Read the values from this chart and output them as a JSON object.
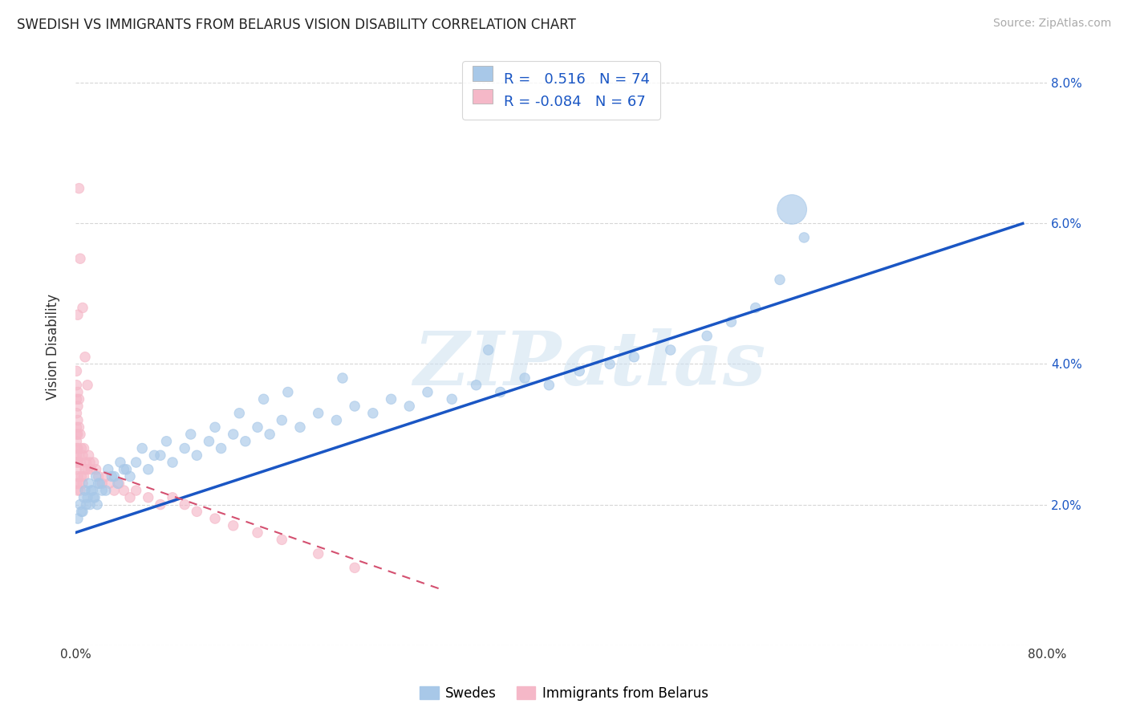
{
  "title": "SWEDISH VS IMMIGRANTS FROM BELARUS VISION DISABILITY CORRELATION CHART",
  "source": "Source: ZipAtlas.com",
  "ylabel": "Vision Disability",
  "xlim": [
    0,
    0.8
  ],
  "ylim": [
    0,
    0.085
  ],
  "swedes_color": "#a8c8e8",
  "belarus_color": "#f5b8c8",
  "trendline_swedes_color": "#1a56c4",
  "trendline_belarus_color": "#d45070",
  "R_swedes": 0.516,
  "N_swedes": 74,
  "R_belarus": -0.084,
  "N_belarus": 67,
  "legend_label_swedes": "Swedes",
  "legend_label_belarus": "Immigrants from Belarus",
  "watermark": "ZIPatlas",
  "background_color": "#ffffff",
  "swedes_x": [
    0.002,
    0.004,
    0.006,
    0.008,
    0.01,
    0.012,
    0.014,
    0.016,
    0.018,
    0.02,
    0.025,
    0.03,
    0.035,
    0.04,
    0.045,
    0.05,
    0.06,
    0.07,
    0.08,
    0.09,
    0.1,
    0.11,
    0.12,
    0.13,
    0.14,
    0.15,
    0.16,
    0.17,
    0.185,
    0.2,
    0.215,
    0.23,
    0.245,
    0.26,
    0.275,
    0.29,
    0.31,
    0.33,
    0.35,
    0.37,
    0.39,
    0.415,
    0.44,
    0.46,
    0.49,
    0.52,
    0.54,
    0.56,
    0.58,
    0.6,
    0.005,
    0.007,
    0.009,
    0.011,
    0.013,
    0.015,
    0.017,
    0.019,
    0.022,
    0.027,
    0.032,
    0.037,
    0.042,
    0.055,
    0.065,
    0.075,
    0.095,
    0.115,
    0.135,
    0.155,
    0.175,
    0.22,
    0.34,
    0.59
  ],
  "swedes_y": [
    0.018,
    0.02,
    0.019,
    0.022,
    0.021,
    0.02,
    0.022,
    0.021,
    0.02,
    0.023,
    0.022,
    0.024,
    0.023,
    0.025,
    0.024,
    0.026,
    0.025,
    0.027,
    0.026,
    0.028,
    0.027,
    0.029,
    0.028,
    0.03,
    0.029,
    0.031,
    0.03,
    0.032,
    0.031,
    0.033,
    0.032,
    0.034,
    0.033,
    0.035,
    0.034,
    0.036,
    0.035,
    0.037,
    0.036,
    0.038,
    0.037,
    0.039,
    0.04,
    0.041,
    0.042,
    0.044,
    0.046,
    0.048,
    0.052,
    0.058,
    0.019,
    0.021,
    0.02,
    0.023,
    0.022,
    0.021,
    0.024,
    0.023,
    0.022,
    0.025,
    0.024,
    0.026,
    0.025,
    0.028,
    0.027,
    0.029,
    0.03,
    0.031,
    0.033,
    0.035,
    0.036,
    0.038,
    0.042,
    0.062
  ],
  "swedes_sizes": [
    80,
    80,
    80,
    80,
    80,
    80,
    80,
    80,
    80,
    80,
    80,
    80,
    80,
    80,
    80,
    80,
    80,
    80,
    80,
    80,
    80,
    80,
    80,
    80,
    80,
    80,
    80,
    80,
    80,
    80,
    80,
    80,
    80,
    80,
    80,
    80,
    80,
    80,
    80,
    80,
    80,
    80,
    80,
    80,
    80,
    80,
    80,
    80,
    80,
    80,
    80,
    80,
    80,
    80,
    80,
    80,
    80,
    80,
    80,
    80,
    80,
    80,
    80,
    80,
    80,
    80,
    80,
    80,
    80,
    80,
    80,
    80,
    80,
    700
  ],
  "belarus_x": [
    0.001,
    0.001,
    0.001,
    0.001,
    0.001,
    0.001,
    0.001,
    0.001,
    0.001,
    0.001,
    0.001,
    0.001,
    0.002,
    0.002,
    0.002,
    0.002,
    0.002,
    0.002,
    0.002,
    0.002,
    0.003,
    0.003,
    0.003,
    0.003,
    0.004,
    0.004,
    0.004,
    0.005,
    0.005,
    0.006,
    0.006,
    0.007,
    0.007,
    0.008,
    0.009,
    0.01,
    0.011,
    0.012,
    0.013,
    0.015,
    0.017,
    0.019,
    0.022,
    0.025,
    0.028,
    0.032,
    0.036,
    0.04,
    0.045,
    0.05,
    0.06,
    0.07,
    0.08,
    0.09,
    0.1,
    0.115,
    0.13,
    0.15,
    0.17,
    0.2,
    0.23,
    0.01,
    0.008,
    0.006,
    0.004,
    0.003,
    0.002
  ],
  "belarus_y": [
    0.023,
    0.025,
    0.027,
    0.029,
    0.031,
    0.033,
    0.035,
    0.037,
    0.039,
    0.026,
    0.028,
    0.03,
    0.022,
    0.024,
    0.026,
    0.028,
    0.03,
    0.032,
    0.034,
    0.036,
    0.023,
    0.027,
    0.031,
    0.035,
    0.022,
    0.026,
    0.03,
    0.024,
    0.028,
    0.023,
    0.027,
    0.024,
    0.028,
    0.025,
    0.026,
    0.025,
    0.027,
    0.026,
    0.025,
    0.026,
    0.025,
    0.024,
    0.023,
    0.024,
    0.023,
    0.022,
    0.023,
    0.022,
    0.021,
    0.022,
    0.021,
    0.02,
    0.021,
    0.02,
    0.019,
    0.018,
    0.017,
    0.016,
    0.015,
    0.013,
    0.011,
    0.037,
    0.041,
    0.048,
    0.055,
    0.065,
    0.047
  ],
  "belarus_sizes": [
    80,
    80,
    80,
    80,
    80,
    80,
    80,
    80,
    80,
    80,
    80,
    80,
    80,
    80,
    80,
    80,
    80,
    80,
    80,
    80,
    80,
    80,
    80,
    80,
    80,
    80,
    80,
    80,
    80,
    80,
    80,
    80,
    80,
    80,
    80,
    80,
    80,
    80,
    80,
    80,
    80,
    80,
    80,
    80,
    80,
    80,
    80,
    80,
    80,
    80,
    80,
    80,
    80,
    80,
    80,
    80,
    80,
    80,
    80,
    80,
    80,
    80,
    80,
    80,
    80,
    80,
    80
  ],
  "trend_swedes_x0": 0.0,
  "trend_swedes_x1": 0.78,
  "trend_swedes_y0": 0.016,
  "trend_swedes_y1": 0.06,
  "trend_belarus_x0": 0.0,
  "trend_belarus_x1": 0.3,
  "trend_belarus_y0": 0.026,
  "trend_belarus_y1": 0.008
}
